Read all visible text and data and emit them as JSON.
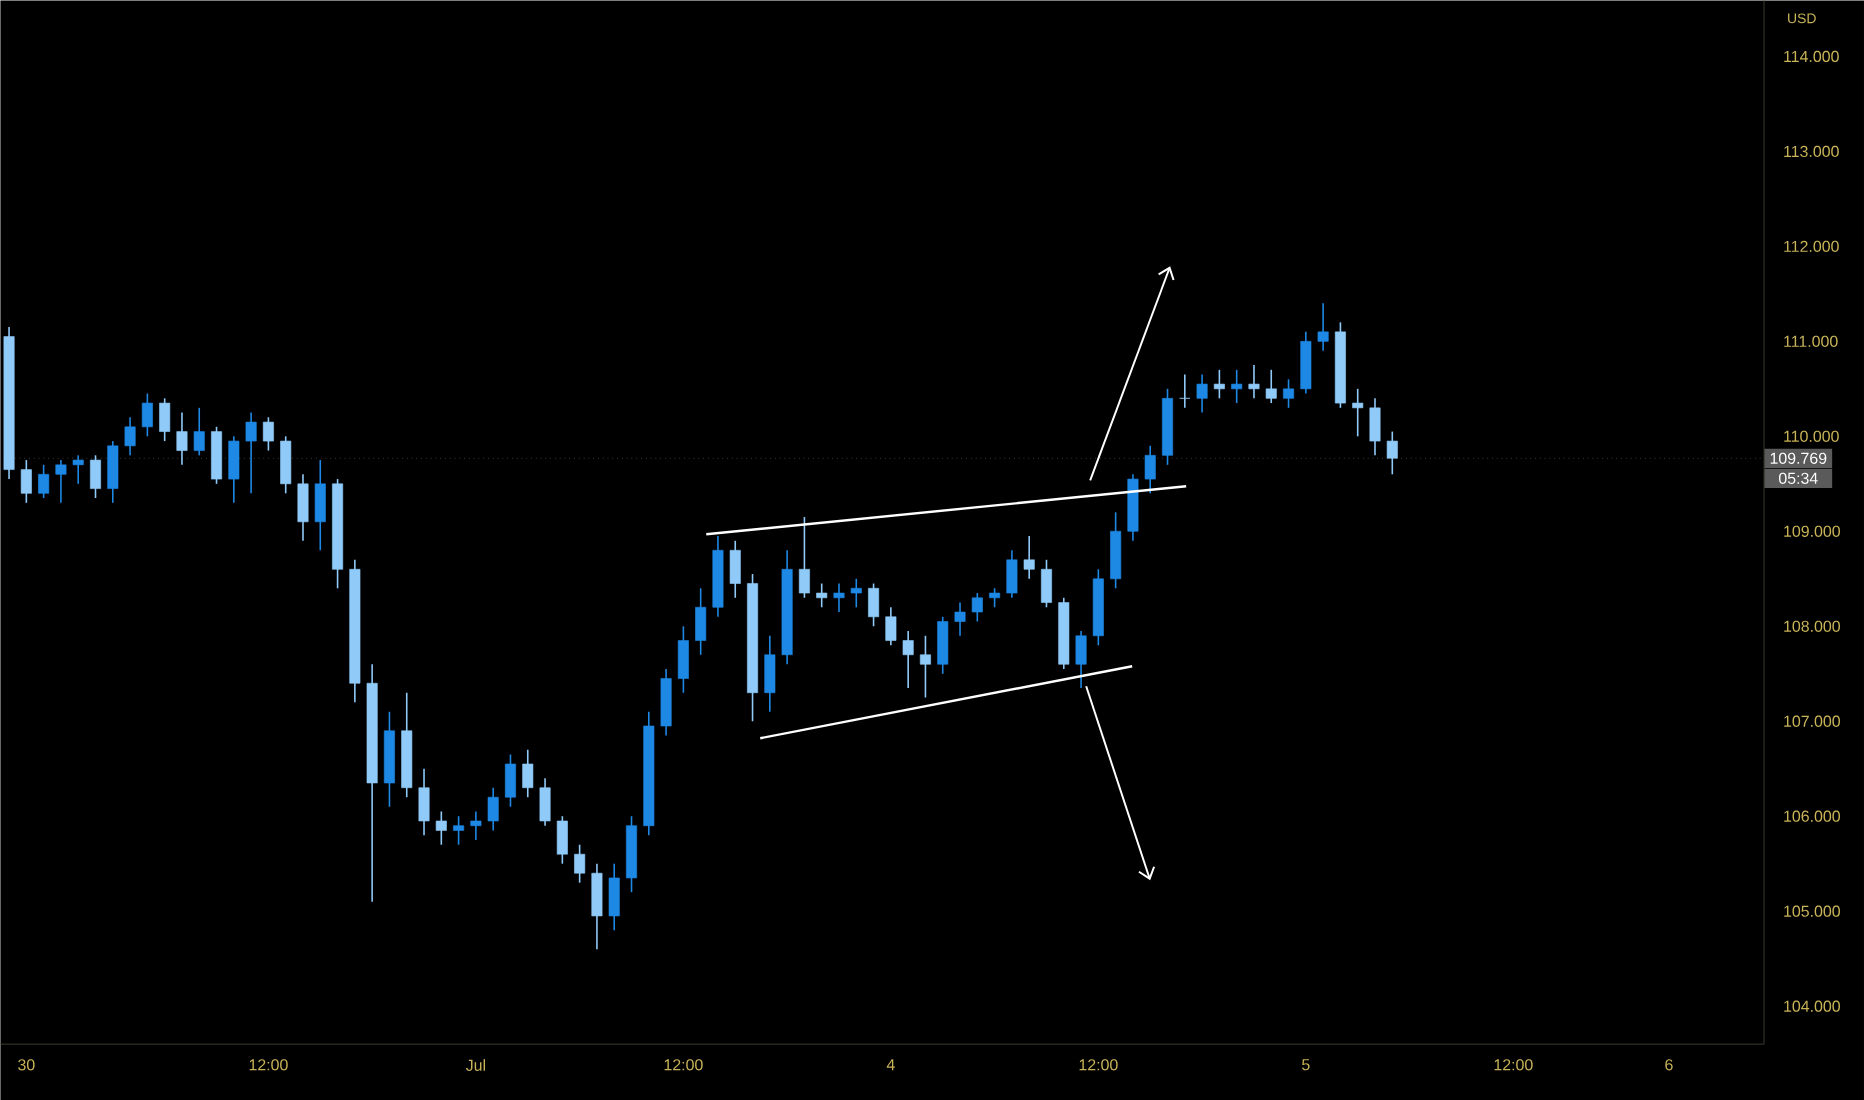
{
  "chart_data": {
    "type": "candlestick",
    "ylabel": "USD",
    "categories": [
      null,
      "30",
      null,
      null,
      null,
      null,
      null,
      null,
      null,
      null,
      null,
      null,
      null,
      null,
      null,
      "12:00",
      null,
      null,
      null,
      null,
      null,
      null,
      null,
      null,
      null,
      null,
      null,
      "Jul",
      null,
      null,
      null,
      null,
      null,
      null,
      null,
      null,
      null,
      null,
      null,
      "12:00",
      null,
      null,
      null,
      null,
      null,
      null,
      null,
      null,
      null,
      null,
      null,
      "4",
      null,
      null,
      null,
      null,
      null,
      null,
      null,
      null,
      null,
      null,
      null,
      "12:00",
      null,
      null,
      null,
      null,
      null,
      null,
      null,
      null,
      null,
      null,
      null,
      "5",
      null,
      null,
      null,
      null,
      null,
      null,
      null,
      null,
      null,
      null,
      null,
      "12:00",
      null,
      null,
      null,
      null,
      null,
      null,
      null,
      null,
      "6",
      null,
      null,
      null,
      null,
      null
    ],
    "ohlc": [
      [
        111.05,
        111.15,
        109.55,
        109.65
      ],
      [
        109.65,
        109.75,
        109.3,
        109.4
      ],
      [
        109.4,
        109.7,
        109.35,
        109.6
      ],
      [
        109.6,
        109.75,
        109.3,
        109.7
      ],
      [
        109.7,
        109.8,
        109.5,
        109.75
      ],
      [
        109.75,
        109.8,
        109.35,
        109.45
      ],
      [
        109.45,
        109.95,
        109.3,
        109.9
      ],
      [
        109.9,
        110.2,
        109.8,
        110.1
      ],
      [
        110.1,
        110.45,
        110.0,
        110.35
      ],
      [
        110.35,
        110.4,
        109.95,
        110.05
      ],
      [
        110.05,
        110.25,
        109.7,
        109.85
      ],
      [
        109.85,
        110.3,
        109.8,
        110.05
      ],
      [
        110.05,
        110.1,
        109.5,
        109.55
      ],
      [
        109.55,
        110.0,
        109.3,
        109.95
      ],
      [
        109.95,
        110.25,
        109.4,
        110.15
      ],
      [
        110.15,
        110.2,
        109.85,
        109.95
      ],
      [
        109.95,
        110.0,
        109.4,
        109.5
      ],
      [
        109.5,
        109.6,
        108.9,
        109.1
      ],
      [
        109.1,
        109.75,
        108.8,
        109.5
      ],
      [
        109.5,
        109.55,
        108.4,
        108.6
      ],
      [
        108.6,
        108.7,
        107.2,
        107.4
      ],
      [
        107.4,
        107.6,
        105.1,
        106.35
      ],
      [
        106.35,
        107.1,
        106.1,
        106.9
      ],
      [
        106.9,
        107.3,
        106.2,
        106.3
      ],
      [
        106.3,
        106.5,
        105.8,
        105.95
      ],
      [
        105.95,
        106.05,
        105.7,
        105.85
      ],
      [
        105.85,
        106.0,
        105.7,
        105.9
      ],
      [
        105.9,
        106.05,
        105.75,
        105.95
      ],
      [
        105.95,
        106.3,
        105.85,
        106.2
      ],
      [
        106.2,
        106.65,
        106.1,
        106.55
      ],
      [
        106.55,
        106.7,
        106.2,
        106.3
      ],
      [
        106.3,
        106.4,
        105.9,
        105.95
      ],
      [
        105.95,
        106.0,
        105.5,
        105.6
      ],
      [
        105.6,
        105.7,
        105.3,
        105.4
      ],
      [
        105.4,
        105.5,
        104.6,
        104.95
      ],
      [
        104.95,
        105.5,
        104.8,
        105.35
      ],
      [
        105.35,
        106.0,
        105.2,
        105.9
      ],
      [
        105.9,
        107.1,
        105.8,
        106.95
      ],
      [
        106.95,
        107.55,
        106.85,
        107.45
      ],
      [
        107.45,
        108.0,
        107.3,
        107.85
      ],
      [
        107.85,
        108.4,
        107.7,
        108.2
      ],
      [
        108.2,
        108.95,
        108.1,
        108.8
      ],
      [
        108.8,
        108.9,
        108.3,
        108.45
      ],
      [
        108.45,
        108.55,
        107.0,
        107.3
      ],
      [
        107.3,
        107.9,
        107.1,
        107.7
      ],
      [
        107.7,
        108.8,
        107.6,
        108.6
      ],
      [
        108.6,
        109.15,
        108.3,
        108.35
      ],
      [
        108.35,
        108.45,
        108.2,
        108.3
      ],
      [
        108.3,
        108.45,
        108.15,
        108.35
      ],
      [
        108.35,
        108.5,
        108.2,
        108.4
      ],
      [
        108.4,
        108.45,
        108.0,
        108.1
      ],
      [
        108.1,
        108.2,
        107.8,
        107.85
      ],
      [
        107.85,
        107.95,
        107.35,
        107.7
      ],
      [
        107.7,
        107.9,
        107.25,
        107.6
      ],
      [
        107.6,
        108.1,
        107.5,
        108.05
      ],
      [
        108.05,
        108.25,
        107.9,
        108.15
      ],
      [
        108.15,
        108.35,
        108.05,
        108.3
      ],
      [
        108.3,
        108.4,
        108.2,
        108.35
      ],
      [
        108.35,
        108.8,
        108.3,
        108.7
      ],
      [
        108.7,
        108.95,
        108.5,
        108.6
      ],
      [
        108.6,
        108.7,
        108.2,
        108.25
      ],
      [
        108.25,
        108.3,
        107.55,
        107.6
      ],
      [
        107.6,
        107.95,
        107.35,
        107.9
      ],
      [
        107.9,
        108.6,
        107.8,
        108.5
      ],
      [
        108.5,
        109.2,
        108.4,
        109.0
      ],
      [
        109.0,
        109.6,
        108.9,
        109.55
      ],
      [
        109.55,
        109.9,
        109.4,
        109.8
      ],
      [
        109.8,
        110.5,
        109.7,
        110.4
      ],
      [
        110.4,
        110.65,
        110.3,
        110.4
      ],
      [
        110.4,
        110.65,
        110.25,
        110.55
      ],
      [
        110.55,
        110.7,
        110.4,
        110.5
      ],
      [
        110.5,
        110.7,
        110.35,
        110.55
      ],
      [
        110.55,
        110.75,
        110.4,
        110.5
      ],
      [
        110.5,
        110.7,
        110.35,
        110.4
      ],
      [
        110.4,
        110.6,
        110.3,
        110.5
      ],
      [
        110.5,
        111.1,
        110.45,
        111.0
      ],
      [
        111.0,
        111.4,
        110.9,
        111.1
      ],
      [
        111.1,
        111.2,
        110.3,
        110.35
      ],
      [
        110.35,
        110.5,
        110.0,
        110.3
      ],
      [
        110.3,
        110.4,
        109.8,
        109.95
      ],
      [
        109.95,
        110.05,
        109.6,
        109.769
      ],
      null,
      null,
      null,
      null,
      null,
      null,
      null,
      null,
      null,
      null,
      null,
      null,
      null,
      null,
      null,
      null,
      null,
      null,
      null,
      null,
      null
    ],
    "colors": [
      "#90caf9",
      "#90caf9",
      "#1e88e5",
      "#1e88e5",
      "#1e88e5",
      "#90caf9",
      "#1e88e5",
      "#1e88e5",
      "#1e88e5",
      "#90caf9",
      "#90caf9",
      "#1e88e5",
      "#90caf9",
      "#1e88e5",
      "#1e88e5",
      "#90caf9",
      "#90caf9",
      "#90caf9",
      "#1e88e5",
      "#90caf9",
      "#90caf9",
      "#90caf9",
      "#1e88e5",
      "#90caf9",
      "#90caf9",
      "#90caf9",
      "#1e88e5",
      "#1e88e5",
      "#1e88e5",
      "#1e88e5",
      "#90caf9",
      "#90caf9",
      "#90caf9",
      "#90caf9",
      "#90caf9",
      "#1e88e5",
      "#1e88e5",
      "#1e88e5",
      "#1e88e5",
      "#1e88e5",
      "#1e88e5",
      "#1e88e5",
      "#90caf9",
      "#90caf9",
      "#1e88e5",
      "#1e88e5",
      "#90caf9",
      "#90caf9",
      "#1e88e5",
      "#1e88e5",
      "#90caf9",
      "#90caf9",
      "#90caf9",
      "#90caf9",
      "#1e88e5",
      "#1e88e5",
      "#1e88e5",
      "#1e88e5",
      "#1e88e5",
      "#90caf9",
      "#90caf9",
      "#90caf9",
      "#1e88e5",
      "#1e88e5",
      "#1e88e5",
      "#1e88e5",
      "#1e88e5",
      "#1e88e5",
      "#90caf9",
      "#1e88e5",
      "#90caf9",
      "#1e88e5",
      "#90caf9",
      "#90caf9",
      "#1e88e5",
      "#1e88e5",
      "#1e88e5",
      "#90caf9",
      "#90caf9",
      "#90caf9",
      "#90caf9",
      null,
      null,
      null,
      null,
      null,
      null,
      null,
      null,
      null,
      null,
      null,
      null,
      null,
      null,
      null,
      null,
      null,
      null,
      null,
      null,
      null
    ],
    "ylim": [
      103.6,
      114.59
    ],
    "yticks": [
      {
        "value": 104,
        "label": "104.000"
      },
      {
        "value": 105,
        "label": "105.000"
      },
      {
        "value": 106,
        "label": "106.000"
      },
      {
        "value": 107,
        "label": "107.000"
      },
      {
        "value": 108,
        "label": "108.000"
      },
      {
        "value": 109,
        "label": "109.000"
      },
      {
        "value": 110,
        "label": "110.000"
      },
      {
        "value": 111,
        "label": "111.000"
      },
      {
        "value": 112,
        "label": "112.000"
      },
      {
        "value": 113,
        "label": "113.000"
      },
      {
        "value": 114,
        "label": "114.000"
      }
    ],
    "ref_lines": [
      {
        "axis": "y",
        "value": 109.769,
        "label": "109.769",
        "color": "#5a5a5a",
        "line_style": "dotted"
      }
    ],
    "annotations": [
      "05:34"
    ]
  }
}
